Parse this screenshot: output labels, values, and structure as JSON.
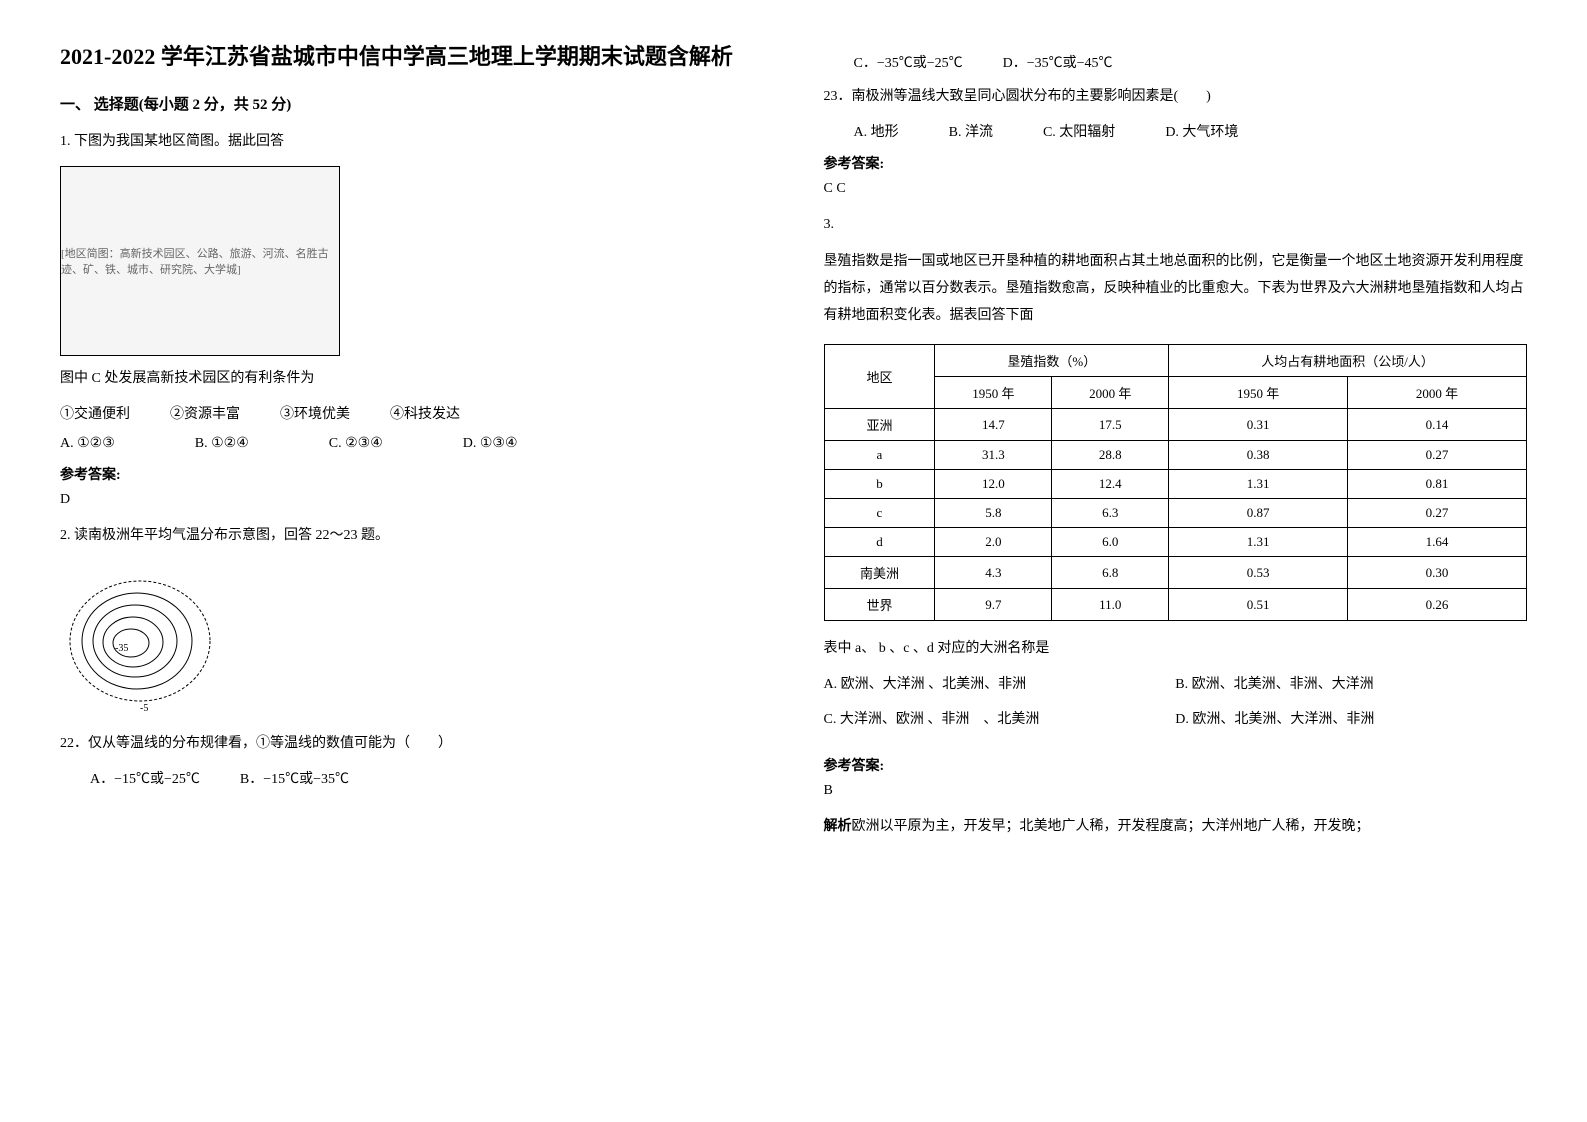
{
  "title": "2021-2022 学年江苏省盐城市中信中学高三地理上学期期末试题含解析",
  "section1": {
    "header": "一、 选择题(每小题 2 分，共 52 分)"
  },
  "q1": {
    "stem": "1. 下图为我国某地区简图。据此回答",
    "figure_caption": "[地区简图：高新技术园区、公路、旅游、河流、名胜古迹、矿、铁、城市、研究院、大学城]",
    "subtext": "图中 C 处发展高新技术园区的有利条件为",
    "circles": {
      "c1": "①交通便利",
      "c2": "②资源丰富",
      "c3": "③环境优美",
      "c4": "④科技发达"
    },
    "options": {
      "a": "A. ①②③",
      "b": "B. ①②④",
      "c": "C. ②③④",
      "d": "D. ①③④"
    },
    "answer_label": "参考答案:",
    "answer": "D"
  },
  "q2": {
    "stem": "2. 读南极洲年平均气温分布示意图，回答 22～23 题。",
    "figure_caption": "[南极洲等温线示意图]",
    "q22": {
      "stem": "22．仅从等温线的分布规律看，①等温线的数值可能为（　　）",
      "options": {
        "a": "A．−15℃或−25℃",
        "b": "B．−15℃或−35℃",
        "c": "C．−35℃或−25℃",
        "d": "D．−35℃或−45℃"
      }
    },
    "q23": {
      "stem": "23．南极洲等温线大致呈同心圆状分布的主要影响因素是(　　)",
      "options": {
        "a": "A. 地形",
        "b": "B. 洋流",
        "c": "C. 太阳辐射",
        "d": "D. 大气环境"
      }
    },
    "answer_label": "参考答案:",
    "answer": "C  C"
  },
  "q3": {
    "label": "3.",
    "intro": "垦殖指数是指一国或地区已开垦种植的耕地面积占其土地总面积的比例，它是衡量一个地区土地资源开发利用程度的指标，通常以百分数表示。垦殖指数愈高，反映种植业的比重愈大。下表为世界及六大洲耕地垦殖指数和人均占有耕地面积变化表。据表回答下面",
    "table": {
      "headers": {
        "region": "地区",
        "kenzhi": "垦殖指数（%）",
        "renjun": "人均占有耕地面积（公顷/人）",
        "y1950": "1950 年",
        "y2000": "2000 年"
      },
      "rows": [
        {
          "region": "亚洲",
          "k1950": "14.7",
          "k2000": "17.5",
          "r1950": "0.31",
          "r2000": "0.14"
        },
        {
          "region": "a",
          "k1950": "31.3",
          "k2000": "28.8",
          "r1950": "0.38",
          "r2000": "0.27"
        },
        {
          "region": "b",
          "k1950": "12.0",
          "k2000": "12.4",
          "r1950": "1.31",
          "r2000": "0.81"
        },
        {
          "region": "c",
          "k1950": "5.8",
          "k2000": "6.3",
          "r1950": "0.87",
          "r2000": "0.27"
        },
        {
          "region": "d",
          "k1950": "2.0",
          "k2000": "6.0",
          "r1950": "1.31",
          "r2000": "1.64"
        },
        {
          "region": "南美洲",
          "k1950": "4.3",
          "k2000": "6.8",
          "r1950": "0.53",
          "r2000": "0.30"
        },
        {
          "region": "世界",
          "k1950": "9.7",
          "k2000": "11.0",
          "r1950": "0.51",
          "r2000": "0.26"
        }
      ]
    },
    "subtext": "表中 a、 b 、c 、d 对应的大洲名称是",
    "options": {
      "a": "A. 欧洲、大洋洲 、北美洲、非洲",
      "b": "B. 欧洲、北美洲、非洲、大洋洲",
      "c": "C. 大洋洲、欧洲 、非洲　、北美洲",
      "d": "D. 欧洲、北美洲、大洋洲、非洲"
    },
    "answer_label": "参考答案:",
    "answer": "B",
    "explanation_label": "解析",
    "explanation": "欧洲以平原为主，开发早；北美地广人稀，开发程度高；大洋州地广人稀，开发晚；"
  }
}
